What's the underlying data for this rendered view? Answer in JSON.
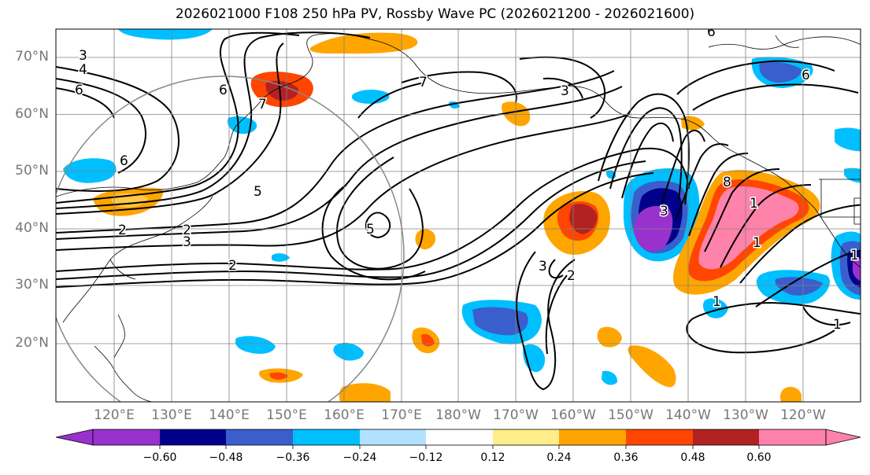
{
  "title": "2026021000 F108 250 hPa PV, Rossby Wave PC (2026021200 - 2026021600)",
  "lat_labels": [
    "70°N",
    "60°N",
    "50°N",
    "40°N",
    "30°N",
    "20°N"
  ],
  "lon_labels": [
    "120°E",
    "130°E",
    "140°E",
    "150°E",
    "160°E",
    "170°E",
    "180°W",
    "170°W",
    "160°W",
    "150°W",
    "140°W",
    "130°W",
    "120°W"
  ],
  "colorbar": {
    "ticks": [
      "−0.60",
      "−0.48",
      "−0.36",
      "−0.24",
      "−0.12",
      "0.12",
      "0.24",
      "0.36",
      "0.48",
      "0.60"
    ],
    "colors": [
      "#9932cc",
      "#00008b",
      "#3a5fcd",
      "#00bfff",
      "#b0e2ff",
      "#ffffff",
      "#ffec8b",
      "#ffa500",
      "#ff4500",
      "#b22222",
      "#ff82ab"
    ]
  },
  "contour_labels": [
    "3",
    "4",
    "6",
    "6",
    "6",
    "7",
    "7",
    "3",
    "6",
    "6",
    "5",
    "2",
    "3",
    "2",
    "2",
    "5",
    "3",
    "2",
    "3",
    "8",
    "1",
    "1",
    "1",
    "1",
    "1"
  ],
  "colors": {
    "grid": "#808080",
    "coast": "#000000",
    "contour": "#000000",
    "circle": "#888888"
  }
}
